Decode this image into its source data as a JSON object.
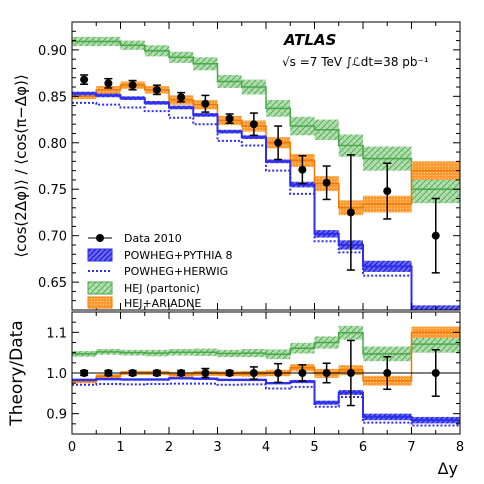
{
  "chart_data": [
    {
      "type": "line",
      "panel": "main",
      "ylabel": "⟨cos(2Δφ)⟩ / ⟨cos(π−Δφ)⟩",
      "xlim": [
        0,
        8
      ],
      "ylim": [
        0.62,
        0.93
      ],
      "yticks": [
        0.65,
        0.7,
        0.75,
        0.8,
        0.85,
        0.9
      ],
      "xticks": [
        0,
        1,
        2,
        3,
        4,
        5,
        6,
        7,
        8
      ],
      "bin_edges": [
        0,
        0.5,
        1,
        1.5,
        2,
        2.5,
        3,
        3.5,
        4,
        4.5,
        5,
        5.5,
        6,
        7,
        8
      ],
      "experiment": "ATLAS",
      "energy_label": "√s =7 TeV ∫ℒdt=38 pb⁻¹",
      "legend_position": "bottom-left",
      "series": [
        {
          "name": "Data 2010",
          "style": "points",
          "color": "#000000",
          "x": [
            0.25,
            0.75,
            1.25,
            1.75,
            2.25,
            2.75,
            3.25,
            3.75,
            4.25,
            4.75,
            5.25,
            5.75,
            6.5,
            7.5
          ],
          "y": [
            0.868,
            0.864,
            0.862,
            0.857,
            0.849,
            0.842,
            0.826,
            0.82,
            0.8,
            0.771,
            0.757,
            0.725,
            0.748,
            0.7
          ],
          "yerr": [
            0.005,
            0.005,
            0.005,
            0.005,
            0.005,
            0.009,
            0.005,
            0.012,
            0.018,
            0.015,
            0.018,
            0.062,
            0.03,
            0.04
          ]
        },
        {
          "name": "POWHEG+PYTHIA 8",
          "style": "band",
          "color": "#2e2ef0",
          "values": [
            0.853,
            0.851,
            0.848,
            0.843,
            0.838,
            0.83,
            0.812,
            0.806,
            0.78,
            0.755,
            0.702,
            0.69,
            0.667,
            0.619
          ],
          "err": [
            0.002,
            0.002,
            0.002,
            0.002,
            0.002,
            0.002,
            0.002,
            0.002,
            0.002,
            0.003,
            0.004,
            0.005,
            0.006,
            0.006
          ]
        },
        {
          "name": "POWHEG+HERWIG",
          "style": "dotted",
          "color": "#2e2ef0",
          "values": [
            0.843,
            0.841,
            0.838,
            0.834,
            0.827,
            0.82,
            0.802,
            0.797,
            0.77,
            0.745,
            0.694,
            0.682,
            0.657,
            0.61
          ]
        },
        {
          "name": "HEJ (partonic)",
          "style": "band-hatched",
          "color": "#4aa84a",
          "fill": "#b5dfb3",
          "values": [
            0.909,
            0.909,
            0.905,
            0.899,
            0.892,
            0.885,
            0.866,
            0.86,
            0.837,
            0.818,
            0.814,
            0.797,
            0.783,
            0.75
          ],
          "err": [
            0.005,
            0.005,
            0.005,
            0.006,
            0.006,
            0.007,
            0.007,
            0.008,
            0.009,
            0.01,
            0.011,
            0.012,
            0.013,
            0.015
          ]
        },
        {
          "name": "HEJ+ARIADNE",
          "style": "band",
          "color": "#f07800",
          "fill": "#ffb35a",
          "values": [
            0.85,
            0.857,
            0.862,
            0.857,
            0.846,
            0.841,
            0.824,
            0.818,
            0.8,
            0.781,
            0.756,
            0.73,
            0.734,
            0.77
          ],
          "err": [
            0.003,
            0.004,
            0.004,
            0.004,
            0.005,
            0.005,
            0.005,
            0.006,
            0.006,
            0.007,
            0.008,
            0.008,
            0.009,
            0.01
          ]
        }
      ]
    },
    {
      "type": "line",
      "panel": "ratio",
      "ylabel": "Theory/Data",
      "xlabel": "Δy",
      "xlim": [
        0,
        8
      ],
      "ylim": [
        0.85,
        1.15
      ],
      "yticks": [
        0.9,
        1.0,
        1.1
      ],
      "xticks": [
        0,
        1,
        2,
        3,
        4,
        5,
        6,
        7,
        8
      ],
      "bin_edges": [
        0,
        0.5,
        1,
        1.5,
        2,
        2.5,
        3,
        3.5,
        4,
        4.5,
        5,
        5.5,
        6,
        7,
        8
      ],
      "series": [
        {
          "name": "Data 2010",
          "style": "points",
          "x": [
            0.25,
            0.75,
            1.25,
            1.75,
            2.25,
            2.75,
            3.25,
            3.75,
            4.25,
            4.75,
            5.25,
            5.75,
            6.5,
            7.5
          ],
          "y": [
            1.0,
            1.0,
            1.0,
            1.0,
            1.0,
            1.0,
            1.0,
            1.0,
            1.0,
            1.0,
            1.0,
            1.0,
            1.0,
            1.0
          ],
          "yerr": [
            0.006,
            0.006,
            0.006,
            0.006,
            0.006,
            0.011,
            0.006,
            0.015,
            0.023,
            0.02,
            0.024,
            0.08,
            0.04,
            0.057
          ]
        },
        {
          "name": "POWHEG+PYTHIA 8",
          "style": "band",
          "values": [
            0.983,
            0.985,
            0.984,
            0.984,
            0.987,
            0.986,
            0.983,
            0.983,
            0.975,
            0.979,
            0.927,
            0.952,
            0.892,
            0.884
          ],
          "err": [
            0.003,
            0.003,
            0.003,
            0.003,
            0.003,
            0.003,
            0.003,
            0.003,
            0.003,
            0.004,
            0.005,
            0.006,
            0.008,
            0.008
          ]
        },
        {
          "name": "POWHEG+HERWIG",
          "style": "dotted",
          "values": [
            0.971,
            0.973,
            0.972,
            0.973,
            0.974,
            0.974,
            0.971,
            0.972,
            0.962,
            0.966,
            0.917,
            0.941,
            0.878,
            0.871
          ]
        },
        {
          "name": "HEJ (partonic)",
          "style": "band-hatched",
          "values": [
            1.047,
            1.052,
            1.05,
            1.049,
            1.051,
            1.051,
            1.048,
            1.049,
            1.046,
            1.061,
            1.075,
            1.099,
            1.047,
            1.071
          ],
          "err": [
            0.007,
            0.007,
            0.007,
            0.008,
            0.008,
            0.009,
            0.009,
            0.01,
            0.012,
            0.013,
            0.015,
            0.017,
            0.018,
            0.021
          ]
        },
        {
          "name": "HEJ+ARIADNE",
          "style": "band",
          "values": [
            0.979,
            0.992,
            1.0,
            1.0,
            0.996,
            0.999,
            0.998,
            0.998,
            1.0,
            1.013,
            0.999,
            1.007,
            0.981,
            1.1
          ],
          "err": [
            0.004,
            0.005,
            0.005,
            0.005,
            0.006,
            0.006,
            0.006,
            0.007,
            0.008,
            0.009,
            0.011,
            0.012,
            0.012,
            0.014
          ]
        }
      ]
    }
  ]
}
